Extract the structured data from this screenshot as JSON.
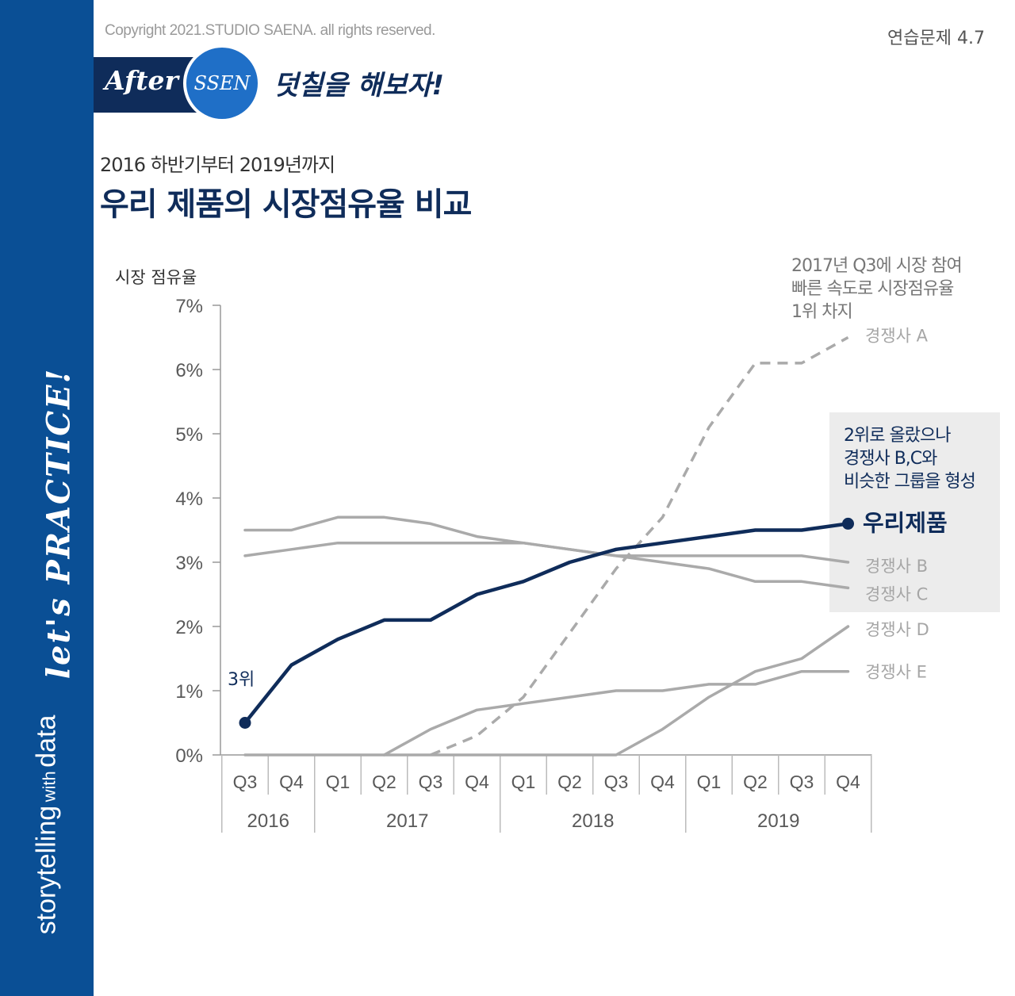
{
  "header": {
    "copyright": "Copyright 2021.STUDIO SAENA. all rights reserved.",
    "exercise": "연습문제 4.7",
    "banner_after": "After",
    "banner_circle": "SSEN",
    "banner_slogan": "덧칠을 해보자!"
  },
  "sidebar": {
    "storytelling": "storytelling",
    "with": "with",
    "data_word": "data",
    "practice": "let's PRACTICE!"
  },
  "headline": {
    "subtitle": "2016 하반기부터 2019년까지",
    "title": "우리 제품의 시장점유율 비교"
  },
  "annotations": {
    "competitor_a_note": [
      "2017년 Q3에 시장 참여",
      "빠른 속도로 시장점유율",
      "1위 차지"
    ],
    "our_product_note": [
      "2위로 올랐으나",
      "경쟁사 B,C와",
      "비슷한 그룹을 형성"
    ],
    "start_rank": "3위"
  },
  "colors": {
    "sidebar": "#0a4f95",
    "navy": "#0f2c5a",
    "gray_line": "#aaaaaa",
    "gray_label": "#a6a6a6",
    "callout_bg": "#ececec"
  },
  "chart_data": {
    "type": "line",
    "title": "우리 제품의 시장점유율 비교",
    "ylabel": "시장 점유율",
    "ylim": [
      0,
      7
    ],
    "yticks": [
      "0%",
      "1%",
      "2%",
      "3%",
      "4%",
      "5%",
      "6%",
      "7%"
    ],
    "categories": [
      "Q3",
      "Q4",
      "Q1",
      "Q2",
      "Q3",
      "Q4",
      "Q1",
      "Q2",
      "Q3",
      "Q4",
      "Q1",
      "Q2",
      "Q3",
      "Q4"
    ],
    "years": [
      {
        "label": "2016",
        "start": 0,
        "end": 1
      },
      {
        "label": "2017",
        "start": 2,
        "end": 5
      },
      {
        "label": "2018",
        "start": 6,
        "end": 9
      },
      {
        "label": "2019",
        "start": 10,
        "end": 13
      }
    ],
    "series": [
      {
        "name": "우리제품",
        "highlight": true,
        "values": [
          0.5,
          1.4,
          1.8,
          2.1,
          2.1,
          2.5,
          2.7,
          3.0,
          3.2,
          3.3,
          3.4,
          3.5,
          3.5,
          3.6
        ]
      },
      {
        "name": "경쟁사 A",
        "dashed": true,
        "values": [
          null,
          null,
          null,
          null,
          0.0,
          0.3,
          0.9,
          1.9,
          2.9,
          3.7,
          5.1,
          6.1,
          6.1,
          6.5
        ]
      },
      {
        "name": "경쟁사 B",
        "values": [
          3.1,
          3.2,
          3.3,
          3.3,
          3.3,
          3.3,
          3.3,
          3.2,
          3.1,
          3.1,
          3.1,
          3.1,
          3.1,
          3.0
        ]
      },
      {
        "name": "경쟁사 C",
        "values": [
          3.5,
          3.5,
          3.7,
          3.7,
          3.6,
          3.4,
          3.3,
          3.2,
          3.1,
          3.0,
          2.9,
          2.7,
          2.7,
          2.6
        ]
      },
      {
        "name": "경쟁사 D",
        "values": [
          0.0,
          0.0,
          0.0,
          0.0,
          0.0,
          0.0,
          0.0,
          0.0,
          0.0,
          0.4,
          0.9,
          1.3,
          1.5,
          2.0
        ]
      },
      {
        "name": "경쟁사 E",
        "values": [
          null,
          null,
          null,
          0.0,
          0.4,
          0.7,
          0.8,
          0.9,
          1.0,
          1.0,
          1.1,
          1.1,
          1.3,
          1.3
        ]
      }
    ]
  }
}
